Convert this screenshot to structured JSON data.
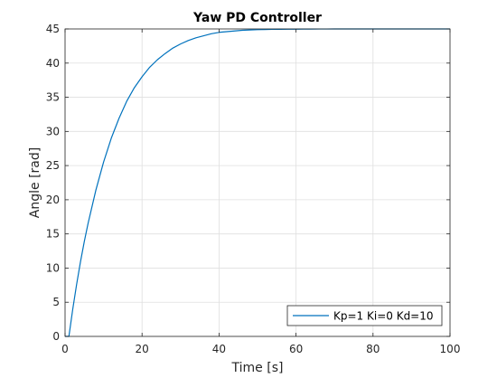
{
  "chart_data": {
    "type": "line",
    "title": "Yaw PD Controller",
    "xlabel": "Time [s]",
    "ylabel": "Angle [rad]",
    "xlim": [
      0,
      100
    ],
    "ylim": [
      0,
      45
    ],
    "xticks": [
      0,
      20,
      40,
      60,
      80,
      100
    ],
    "yticks": [
      0,
      5,
      10,
      15,
      20,
      25,
      30,
      35,
      40,
      45
    ],
    "grid": true,
    "legend_position": "bottom-right",
    "series": [
      {
        "name": "Kp=1 Ki=0 Kd=10",
        "color": "#0072bd",
        "x": [
          0,
          1,
          2,
          3,
          4,
          5,
          6,
          8,
          10,
          12,
          14,
          16,
          18,
          20,
          22,
          24,
          26,
          28,
          30,
          32,
          34,
          36,
          38,
          40,
          42,
          44,
          46,
          48,
          50,
          52,
          54,
          56,
          58,
          60,
          62,
          64,
          66,
          68,
          70,
          75,
          80,
          85,
          90,
          95,
          100
        ],
        "y": [
          0.0,
          0.0,
          4.0,
          7.6,
          10.9,
          13.9,
          16.6,
          21.4,
          25.5,
          29.0,
          31.9,
          34.4,
          36.4,
          38.0,
          39.4,
          40.5,
          41.4,
          42.2,
          42.8,
          43.3,
          43.7,
          44.0,
          44.3,
          44.5,
          44.6,
          44.7,
          44.8,
          44.85,
          44.9,
          44.92,
          44.94,
          44.95,
          44.96,
          44.97,
          44.98,
          44.98,
          44.99,
          44.99,
          45.0,
          45.0,
          45.0,
          45.0,
          45.0,
          45.0,
          45.0
        ]
      }
    ]
  }
}
